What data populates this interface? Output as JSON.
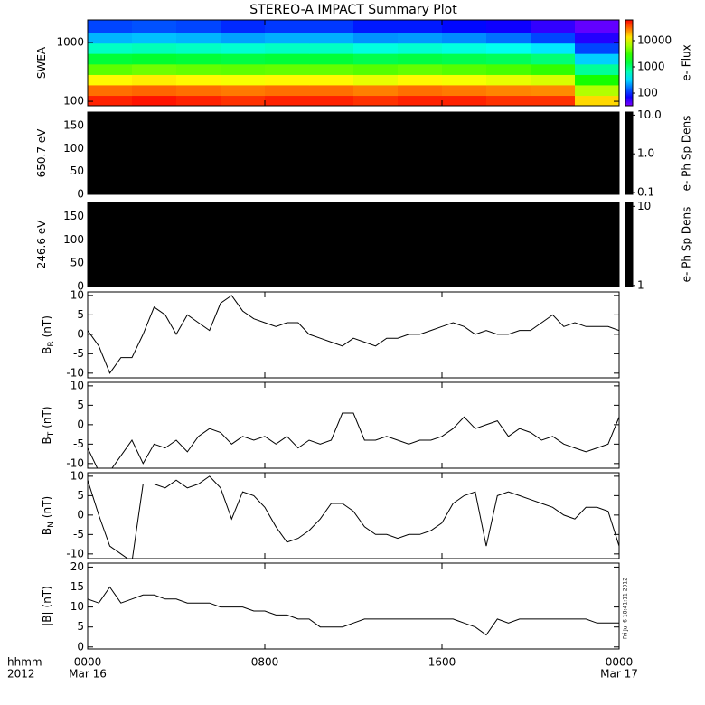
{
  "title": "STEREO-A IMPACT Summary Plot",
  "xaxis_caption": [
    "hhmm",
    "2012"
  ],
  "timestamp": "Fri Jul  6 18:41:11 2012",
  "chart_data": [
    {
      "type": "spectrogram",
      "ylabel": "SWEA",
      "ylog": true,
      "ylim": [
        84,
        2420
      ],
      "yticks": [
        100,
        1000
      ],
      "time_edges": [
        0,
        2,
        4,
        6,
        8,
        10,
        12,
        14,
        16,
        18,
        20,
        22,
        24
      ],
      "energy_edges": [
        84,
        126,
        190,
        285,
        430,
        650,
        975,
        1470,
        2420
      ],
      "values": [
        [
          50000,
          55000,
          50000,
          45000,
          50000,
          50000,
          45000,
          50000,
          50000,
          45000,
          45000,
          15000
        ],
        [
          30000,
          32000,
          30000,
          28000,
          30000,
          30000,
          27000,
          30000,
          28000,
          26000,
          25000,
          7000
        ],
        [
          12000,
          13000,
          12000,
          11000,
          12000,
          12000,
          10000,
          12000,
          11000,
          10000,
          9000,
          2500
        ],
        [
          4000,
          4500,
          4200,
          4000,
          4200,
          4200,
          3800,
          4200,
          3800,
          3500,
          3000,
          800
        ],
        [
          1500,
          1600,
          1500,
          1400,
          1500,
          1500,
          1300,
          1400,
          1300,
          1200,
          1000,
          300
        ],
        [
          600,
          650,
          600,
          550,
          600,
          600,
          500,
          550,
          500,
          450,
          350,
          120
        ],
        [
          250,
          270,
          250,
          220,
          240,
          240,
          200,
          210,
          190,
          160,
          120,
          60
        ],
        [
          120,
          130,
          120,
          100,
          110,
          110,
          90,
          90,
          80,
          70,
          55,
          40
        ]
      ],
      "colormap": "rainbow",
      "clog": true,
      "clim": [
        33,
        62000
      ],
      "cticks": [
        100,
        1000,
        10000
      ],
      "clabel": "e- Flux"
    },
    {
      "type": "spectrogram",
      "ylabel": "650.7 eV",
      "ylim": [
        0,
        180
      ],
      "yticks": [
        0,
        50,
        100,
        150
      ],
      "fill": "#000000",
      "colormap": "black",
      "clog": true,
      "clim": [
        0.09,
        12
      ],
      "cticks": [
        0.1,
        {
          "value": 1,
          "label": "1.0"
        },
        {
          "value": 10,
          "label": "10.0"
        }
      ],
      "clabel": "e- Ph Sp Dens"
    },
    {
      "type": "spectrogram",
      "ylabel": "246.6 eV",
      "ylim": [
        0,
        180
      ],
      "yticks": [
        0,
        50,
        100,
        150
      ],
      "fill": "#000000",
      "colormap": "black",
      "clog": true,
      "clim": [
        0.97,
        11.2
      ],
      "cticks": [
        1,
        10
      ],
      "clabel": "e- Ph Sp Dens"
    },
    {
      "type": "line",
      "ylabel": "B",
      "ylabel_sub": "R",
      "ylabel_unit": "(nT)",
      "color": "#000000",
      "xlim": [
        0,
        24
      ],
      "ylim": [
        -11.2,
        10.9
      ],
      "yticks": [
        -10,
        -5,
        0,
        5,
        10
      ],
      "x": [
        0,
        0.5,
        1,
        1.5,
        2,
        2.5,
        3,
        3.5,
        4,
        4.5,
        5,
        5.5,
        6,
        6.5,
        7,
        7.5,
        8,
        8.5,
        9,
        9.5,
        10,
        10.5,
        11,
        11.5,
        12,
        12.5,
        13,
        13.5,
        14,
        14.5,
        15,
        15.5,
        16,
        16.5,
        17,
        17.5,
        18,
        18.5,
        19,
        19.5,
        20,
        20.5,
        21,
        21.5,
        22,
        22.5,
        23,
        23.5,
        24
      ],
      "values": [
        1,
        -3,
        -10,
        -6,
        -6,
        0,
        7,
        5,
        0,
        5,
        3,
        1,
        8,
        10,
        6,
        4,
        3,
        2,
        3,
        3,
        0,
        -1,
        -2,
        -3,
        -1,
        -2,
        -3,
        -1,
        -1,
        0,
        0,
        1,
        2,
        3,
        2,
        0,
        1,
        0,
        0,
        1,
        1,
        3,
        5,
        2,
        3,
        2,
        2,
        2,
        1
      ]
    },
    {
      "type": "line",
      "ylabel": "B",
      "ylabel_sub": "T",
      "ylabel_unit": "(nT)",
      "color": "#000000",
      "xlim": [
        0,
        24
      ],
      "ylim": [
        -11.2,
        10.9
      ],
      "yticks": [
        -10,
        -5,
        0,
        5,
        10
      ],
      "x": [
        0,
        0.5,
        1,
        1.5,
        2,
        2.5,
        3,
        3.5,
        4,
        4.5,
        5,
        5.5,
        6,
        6.5,
        7,
        7.5,
        8,
        8.5,
        9,
        9.5,
        10,
        10.5,
        11,
        11.5,
        12,
        12.5,
        13,
        13.5,
        14,
        14.5,
        15,
        15.5,
        16,
        16.5,
        17,
        17.5,
        18,
        18.5,
        19,
        19.5,
        20,
        20.5,
        21,
        21.5,
        22,
        22.5,
        23,
        23.5,
        24
      ],
      "values": [
        -6,
        -12,
        -12,
        -8,
        -4,
        -10,
        -5,
        -6,
        -4,
        -7,
        -3,
        -1,
        -2,
        -5,
        -3,
        -4,
        -3,
        -5,
        -3,
        -6,
        -4,
        -5,
        -4,
        3,
        3,
        -4,
        -4,
        -3,
        -4,
        -5,
        -4,
        -4,
        -3,
        -1,
        2,
        -1,
        0,
        1,
        -3,
        -1,
        -2,
        -4,
        -3,
        -5,
        -6,
        -7,
        -6,
        -5,
        2
      ]
    },
    {
      "type": "line",
      "ylabel": "B",
      "ylabel_sub": "N",
      "ylabel_unit": "(nT)",
      "color": "#000000",
      "xlim": [
        0,
        24
      ],
      "ylim": [
        -11.2,
        10.9
      ],
      "yticks": [
        -10,
        -5,
        0,
        5,
        10
      ],
      "x": [
        0,
        0.5,
        1,
        1.5,
        2,
        2.5,
        3,
        3.5,
        4,
        4.5,
        5,
        5.5,
        6,
        6.5,
        7,
        7.5,
        8,
        8.5,
        9,
        9.5,
        10,
        10.5,
        11,
        11.5,
        12,
        12.5,
        13,
        13.5,
        14,
        14.5,
        15,
        15.5,
        16,
        16.5,
        17,
        17.5,
        18,
        18.5,
        19,
        19.5,
        20,
        20.5,
        21,
        21.5,
        22,
        22.5,
        23,
        23.5,
        24
      ],
      "values": [
        9,
        0,
        -8,
        -10,
        -12,
        8,
        8,
        7,
        9,
        7,
        8,
        10,
        7,
        -1,
        6,
        5,
        2,
        -3,
        -7,
        -6,
        -4,
        -1,
        3,
        3,
        1,
        -3,
        -5,
        -5,
        -6,
        -5,
        -5,
        -4,
        -2,
        3,
        5,
        6,
        -8,
        5,
        6,
        5,
        4,
        3,
        2,
        0,
        -1,
        2,
        2,
        1,
        -8
      ]
    },
    {
      "type": "line",
      "ylabel": "|B|",
      "ylabel_unit": "(nT)",
      "color": "#000000",
      "xlim": [
        0,
        24
      ],
      "ylim": [
        -0.5,
        21
      ],
      "yticks": [
        0,
        5,
        10,
        15,
        20
      ],
      "x": [
        0,
        0.5,
        1,
        1.5,
        2,
        2.5,
        3,
        3.5,
        4,
        4.5,
        5,
        5.5,
        6,
        6.5,
        7,
        7.5,
        8,
        8.5,
        9,
        9.5,
        10,
        10.5,
        11,
        11.5,
        12,
        12.5,
        13,
        13.5,
        14,
        14.5,
        15,
        15.5,
        16,
        16.5,
        17,
        17.5,
        18,
        18.5,
        19,
        19.5,
        20,
        20.5,
        21,
        21.5,
        22,
        22.5,
        23,
        23.5,
        24
      ],
      "values": [
        12,
        11,
        15,
        11,
        12,
        13,
        13,
        12,
        12,
        11,
        11,
        11,
        10,
        10,
        10,
        9,
        9,
        8,
        8,
        7,
        7,
        5,
        5,
        5,
        6,
        7,
        7,
        7,
        7,
        7,
        7,
        7,
        7,
        7,
        6,
        5,
        3,
        7,
        6,
        7,
        7,
        7,
        7,
        7,
        7,
        7,
        6,
        6,
        6
      ],
      "xticks": [
        {
          "value": 0,
          "label": "0000"
        },
        {
          "value": 8,
          "label": "0800"
        },
        {
          "value": 16,
          "label": "1600"
        },
        {
          "value": 24,
          "label": "0000"
        }
      ],
      "xtick_dates": [
        {
          "value": 0,
          "label": "Mar 16"
        },
        {
          "value": 24,
          "label": "Mar 17"
        }
      ]
    }
  ]
}
